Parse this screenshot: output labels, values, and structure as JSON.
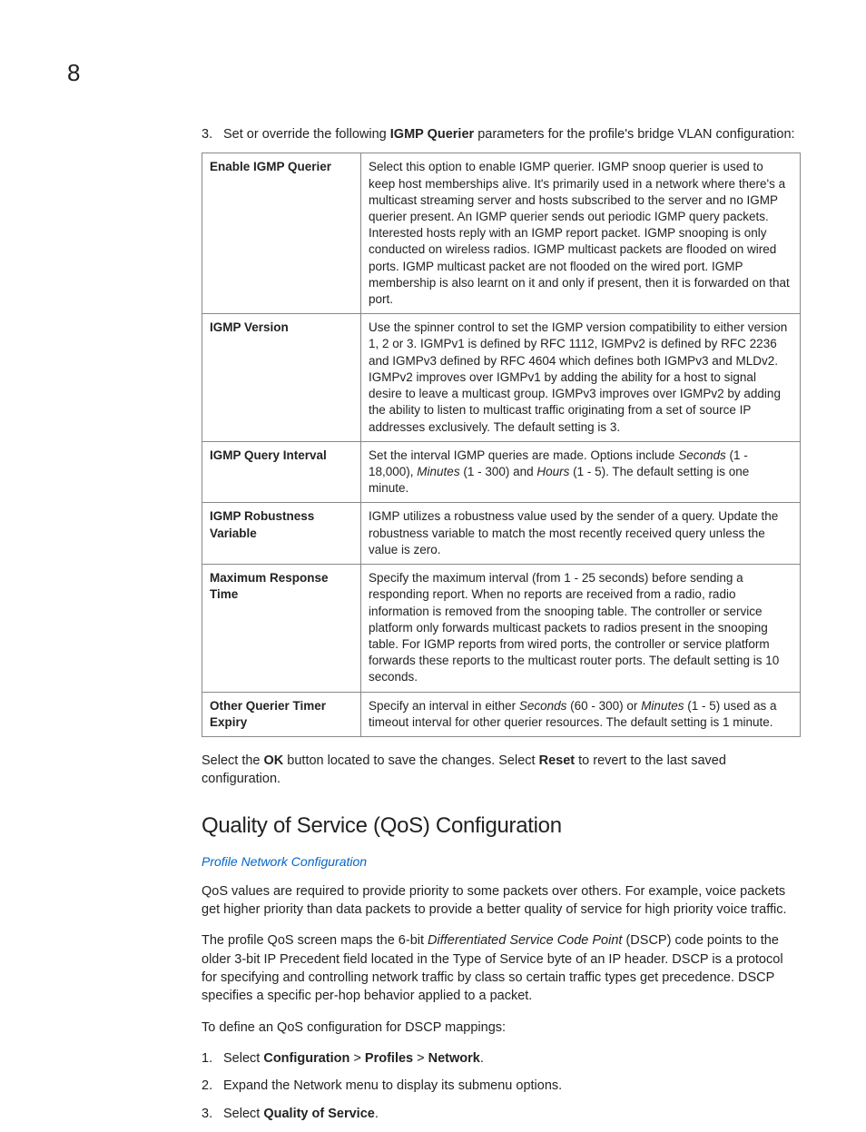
{
  "page_number": "8",
  "intro_step": {
    "num": "3.",
    "prefix": "Set or override the following ",
    "bold1": "IGMP Querier",
    "suffix": " parameters for the profile's bridge VLAN configuration:"
  },
  "table": {
    "rows": [
      {
        "label": "Enable IGMP Querier",
        "desc": "Select this option to enable IGMP querier. IGMP snoop querier is used to keep host memberships alive. It's primarily used in a network where there's a multicast streaming server and hosts subscribed to the server and no IGMP querier present. An IGMP querier sends out periodic IGMP query packets. Interested hosts reply with an IGMP report packet. IGMP snooping is only conducted on wireless radios. IGMP multicast packets are flooded on wired ports. IGMP multicast packet are not flooded on the wired port. IGMP membership is also learnt on it and only if present, then it is forwarded on that port."
      },
      {
        "label": "IGMP Version",
        "desc": "Use the spinner control to set the IGMP version compatibility to either version 1, 2 or 3. IGMPv1 is defined by RFC 1112, IGMPv2 is defined by RFC 2236 and IGMPv3 defined by RFC 4604 which defines both IGMPv3 and MLDv2. IGMPv2 improves over IGMPv1 by adding the ability for a host to signal desire to leave a multicast group. IGMPv3 improves over IGMPv2 by adding the ability to listen to multicast traffic originating from a set of source IP addresses exclusively. The default setting is 3."
      },
      {
        "label": "IGMP Query Interval",
        "desc_parts": {
          "p1": "Set the interval IGMP queries are made. Options include ",
          "i1": "Seconds",
          "p2": " (1 - 18,000), ",
          "i2": "Minutes",
          "p3": " (1 - 300) and ",
          "i3": "Hours",
          "p4": " (1 - 5). The default setting is one minute."
        }
      },
      {
        "label": "IGMP Robustness Variable",
        "desc": "IGMP utilizes a robustness value used by the sender of a query. Update the robustness variable to match the most recently received query unless the value is zero."
      },
      {
        "label": "Maximum Response Time",
        "desc": "Specify the maximum interval (from 1 - 25 seconds) before sending a responding report. When no reports are received from a radio, radio information is removed from the snooping table. The controller or service platform only forwards multicast packets to radios present in the snooping table. For IGMP reports from wired ports, the controller or service platform forwards these reports to the multicast router ports. The default setting is 10 seconds."
      },
      {
        "label": "Other Querier Timer Expiry",
        "desc_parts": {
          "p1": "Specify an interval in either ",
          "i1": "Seconds",
          "p2": " (60 - 300) or ",
          "i2": "Minutes",
          "p3": " (1 - 5) used as a timeout interval for other querier resources. The default setting is 1 minute."
        }
      }
    ]
  },
  "after_table": {
    "p1": "Select the ",
    "b1": "OK",
    "p2": " button located to save the changes. Select ",
    "b2": "Reset",
    "p3": " to revert to the last saved configuration."
  },
  "section_heading": "Quality of Service (QoS) Configuration",
  "link_text": "Profile Network Configuration",
  "qos_para1": "QoS values are required to provide priority to some packets over others. For example, voice packets get higher priority than data packets to provide a better quality of service for high priority voice traffic.",
  "qos_para2": {
    "p1": "The profile QoS screen maps the 6-bit ",
    "i1": "Differentiated Service Code Point",
    "p2": " (DSCP) code points to the older 3-bit IP Precedent field located in the Type of Service byte of an IP header. DSCP is a protocol for specifying and controlling network traffic by class so certain traffic types get precedence. DSCP specifies a specific per-hop behavior applied to a packet."
  },
  "qos_para3": "To define an QoS configuration for DSCP mappings:",
  "steps": [
    {
      "num": "1.",
      "p1": "Select ",
      "b1": "Configuration",
      "sep1": " > ",
      "b2": "Profiles",
      "sep2": " > ",
      "b3": "Network",
      "suffix": "."
    },
    {
      "num": "2.",
      "text": "Expand the Network menu to display its submenu options."
    },
    {
      "num": "3.",
      "p1": "Select ",
      "b1": "Quality of Service",
      "suffix": "."
    }
  ]
}
